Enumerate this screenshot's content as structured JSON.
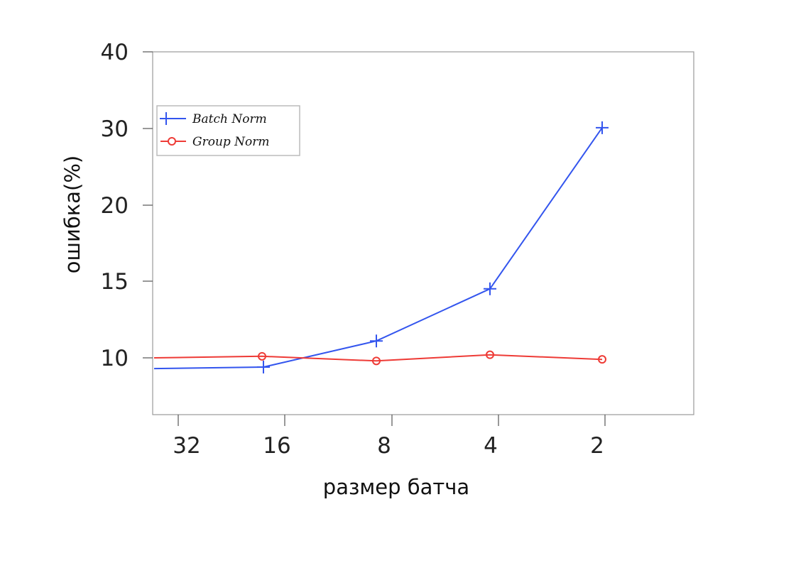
{
  "chart_data": {
    "type": "line",
    "xlabel": "размер батча",
    "ylabel": "ошибка(%)",
    "categories": [
      "32",
      "16",
      "8",
      "4",
      "2"
    ],
    "y_ticks": [
      "10",
      "15",
      "20",
      "30",
      "40"
    ],
    "legend_position": "upper-left",
    "grid": false,
    "series": [
      {
        "name": "Batch Norm",
        "color": "#3355ee",
        "marker": "plus",
        "values": [
          9.3,
          9.4,
          11.1,
          14.5,
          30.1
        ]
      },
      {
        "name": "Group Norm",
        "color": "#ee3b36",
        "marker": "circle",
        "values": [
          10.0,
          10.1,
          9.8,
          10.2,
          9.9
        ]
      }
    ]
  }
}
